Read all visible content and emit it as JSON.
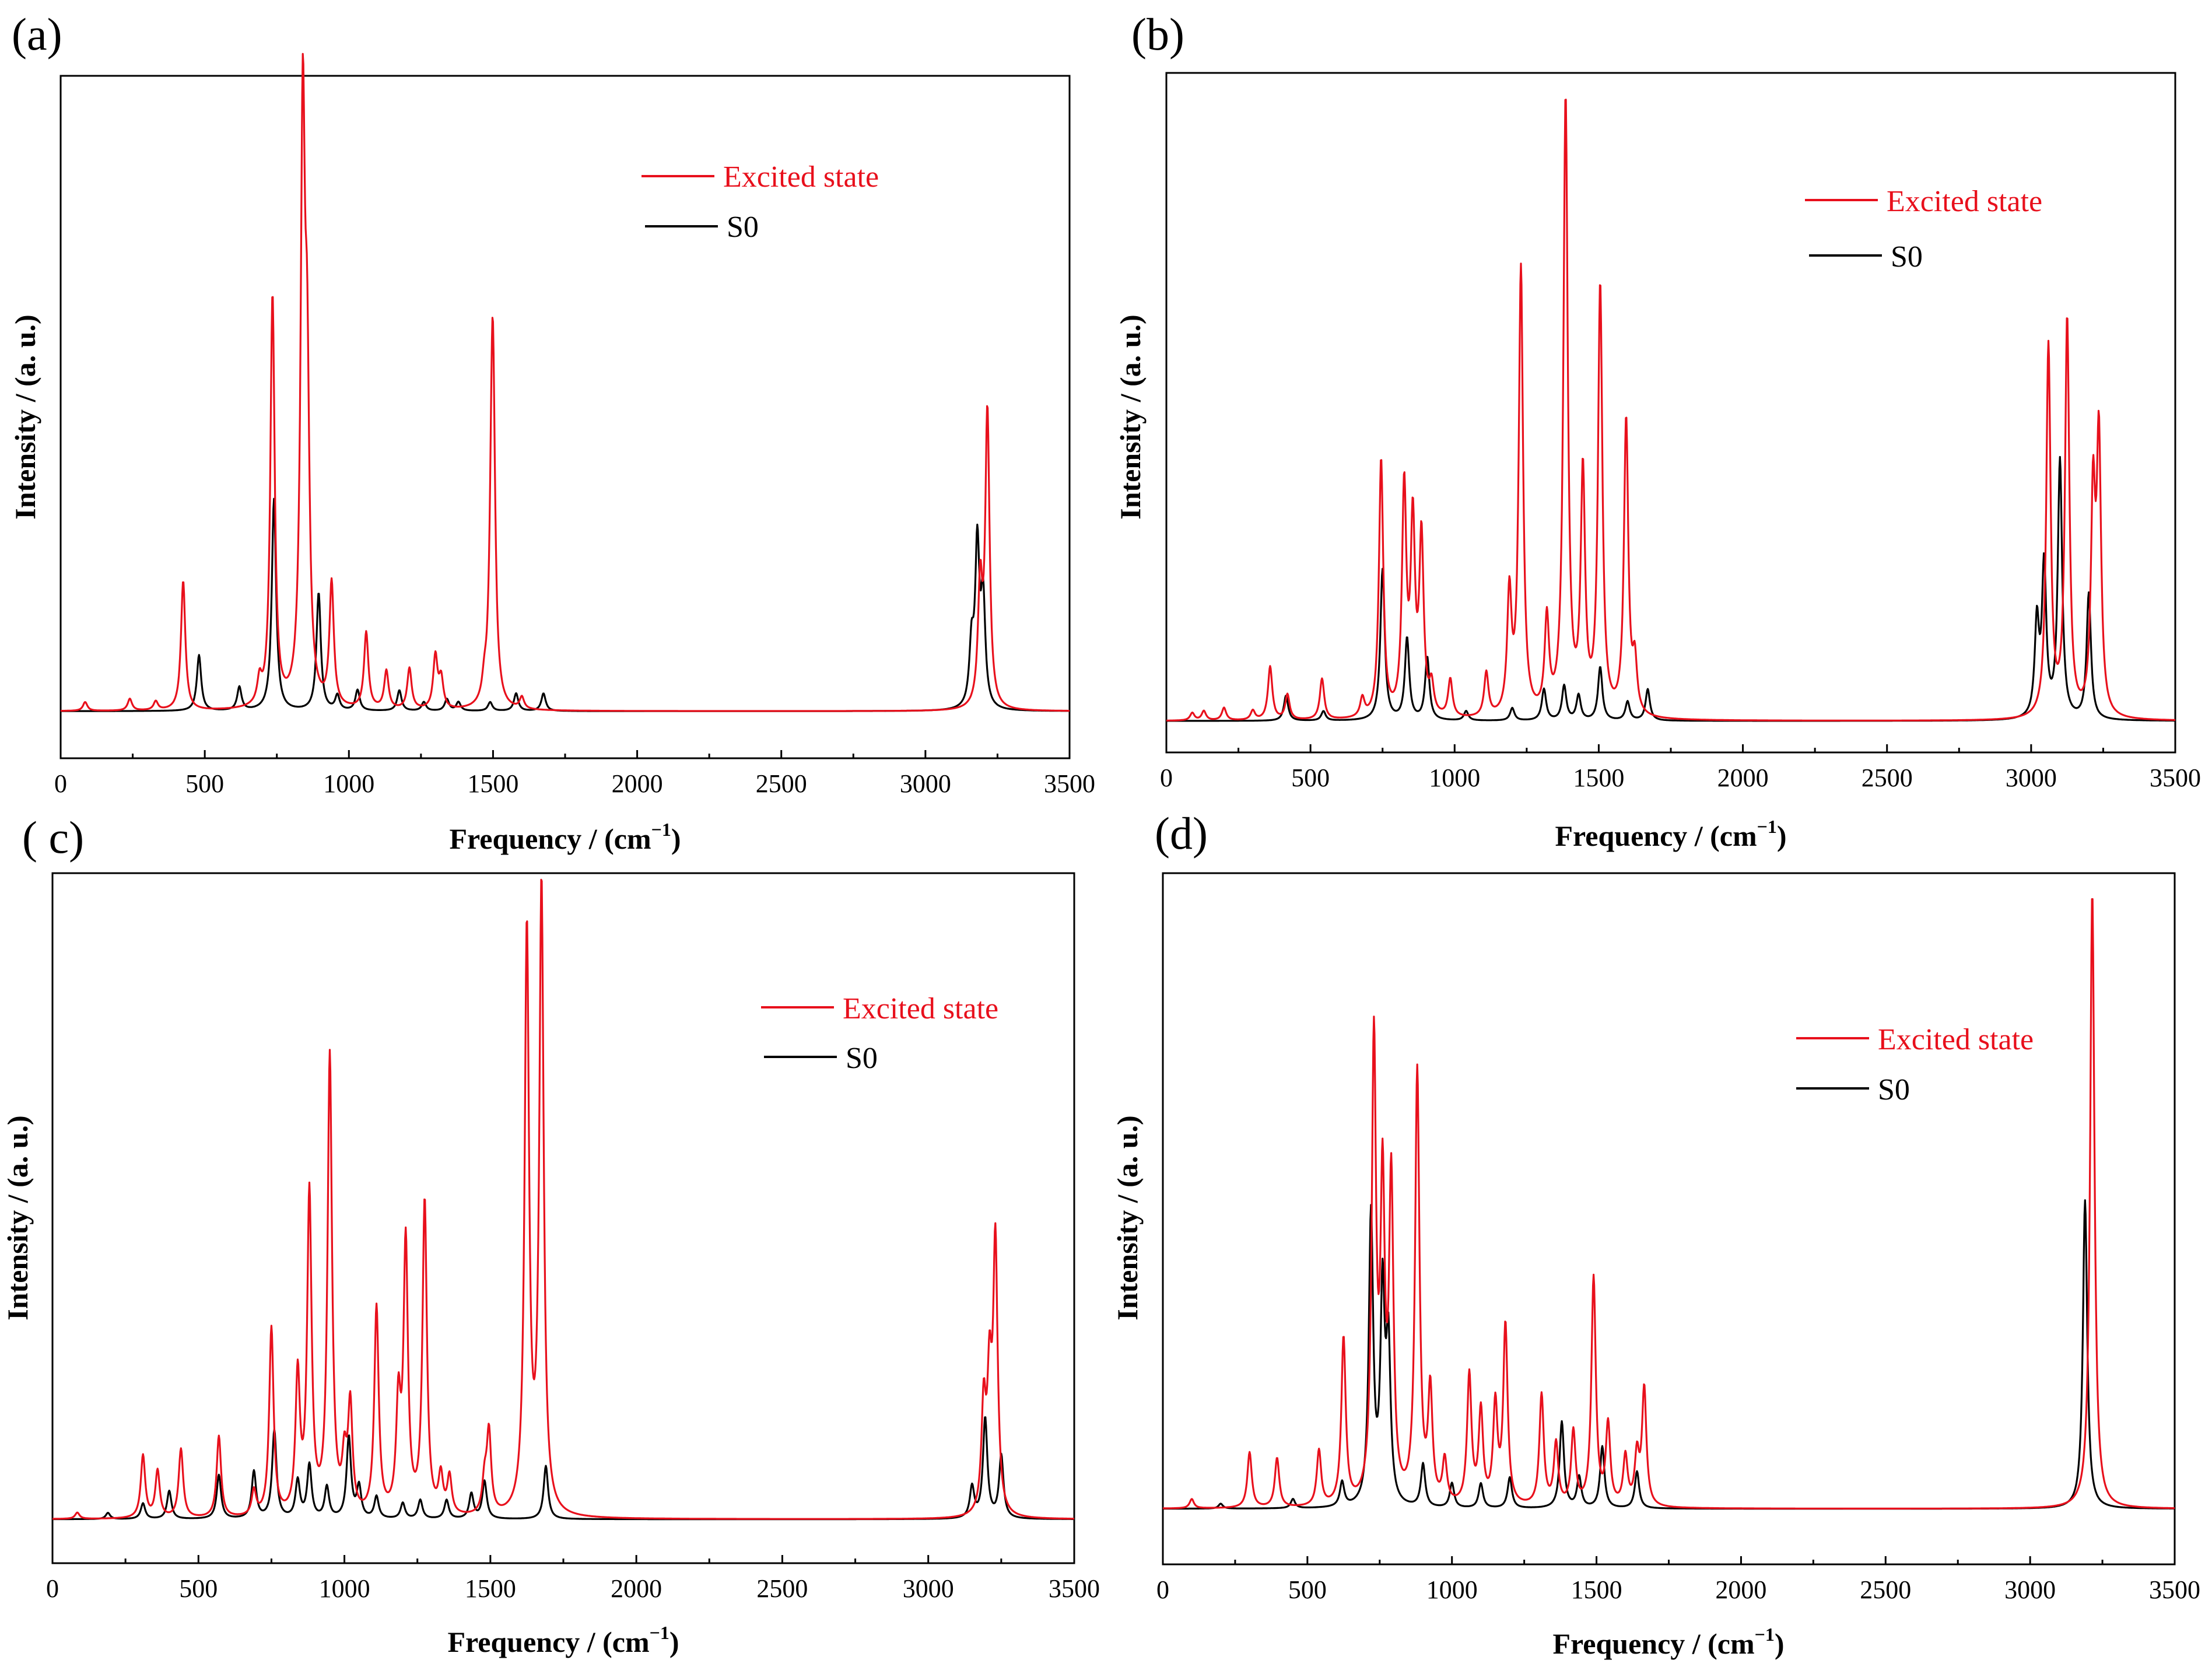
{
  "figure_title": "",
  "colors": {
    "excited": "#e8101c",
    "ground": "#000000"
  },
  "chart_data": [
    {
      "panel": "(a)",
      "type": "line",
      "xlabel": "Frequency / (cm−1)",
      "xlabel_main": "Frequency / (cm",
      "xlabel_sup": "−1",
      "xlabel_close": ")",
      "ylabel": "Intensity / (a. u.)",
      "xlim": [
        0,
        3500
      ],
      "ylim": [
        -0.08,
        1.08
      ],
      "xticks": [
        0,
        500,
        1000,
        1500,
        2000,
        2500,
        3000,
        3500
      ],
      "legend": {
        "position": "top-right",
        "entries": [
          "Excited state",
          "S0"
        ]
      },
      "series": [
        {
          "name": "Excited state",
          "color": "#e8101c",
          "peaks": [
            [
              85,
              0.015
            ],
            [
              240,
              0.02
            ],
            [
              330,
              0.015
            ],
            [
              425,
              0.22
            ],
            [
              690,
              0.04
            ],
            [
              735,
              0.7
            ],
            [
              840,
              0.98
            ],
            [
              855,
              0.49
            ],
            [
              940,
              0.21
            ],
            [
              1060,
              0.13
            ],
            [
              1130,
              0.065
            ],
            [
              1210,
              0.07
            ],
            [
              1300,
              0.09
            ],
            [
              1320,
              0.05
            ],
            [
              1470,
              0.03
            ],
            [
              1495,
              0.22
            ],
            [
              1500,
              0.49
            ],
            [
              1600,
              0.02
            ],
            [
              3190,
              0.2
            ],
            [
              3215,
              0.5
            ]
          ]
        },
        {
          "name": "S0",
          "color": "#000000",
          "peaks": [
            [
              480,
              0.095
            ],
            [
              620,
              0.04
            ],
            [
              740,
              0.36
            ],
            [
              895,
              0.2
            ],
            [
              960,
              0.025
            ],
            [
              1030,
              0.035
            ],
            [
              1175,
              0.035
            ],
            [
              1260,
              0.015
            ],
            [
              1340,
              0.02
            ],
            [
              1380,
              0.015
            ],
            [
              1490,
              0.015
            ],
            [
              1580,
              0.03
            ],
            [
              1675,
              0.03
            ],
            [
              3160,
              0.1
            ],
            [
              3180,
              0.27
            ],
            [
              3200,
              0.18
            ]
          ]
        }
      ]
    },
    {
      "panel": "(b)",
      "type": "line",
      "xlabel": "Frequency / (cm−1)",
      "xlabel_main": "Frequency / (cm",
      "xlabel_sup": "−1",
      "xlabel_close": ")",
      "ylabel": "Intensity / (a. u.)",
      "xlim": [
        0,
        3500
      ],
      "ylim": [
        -0.05,
        1.03
      ],
      "xticks": [
        0,
        500,
        1000,
        1500,
        2000,
        2500,
        3000,
        3500
      ],
      "legend": {
        "position": "top-right",
        "entries": [
          "Excited state",
          "S0"
        ]
      },
      "series": [
        {
          "name": "Excited state",
          "color": "#e8101c",
          "peaks": [
            [
              90,
              0.012
            ],
            [
              130,
              0.015
            ],
            [
              200,
              0.02
            ],
            [
              300,
              0.015
            ],
            [
              360,
              0.085
            ],
            [
              420,
              0.04
            ],
            [
              540,
              0.065
            ],
            [
              680,
              0.03
            ],
            [
              745,
              0.41
            ],
            [
              825,
              0.36
            ],
            [
              855,
              0.3
            ],
            [
              885,
              0.28
            ],
            [
              920,
              0.045
            ],
            [
              985,
              0.06
            ],
            [
              1110,
              0.07
            ],
            [
              1190,
              0.19
            ],
            [
              1230,
              0.71
            ],
            [
              1320,
              0.15
            ],
            [
              1385,
              0.98
            ],
            [
              1445,
              0.38
            ],
            [
              1505,
              0.68
            ],
            [
              1595,
              0.47
            ],
            [
              1625,
              0.08
            ],
            [
              3060,
              0.59
            ],
            [
              3125,
              0.63
            ],
            [
              3215,
              0.34
            ],
            [
              3235,
              0.43
            ]
          ]
        },
        {
          "name": "S0",
          "color": "#000000",
          "peaks": [
            [
              415,
              0.04
            ],
            [
              545,
              0.015
            ],
            [
              750,
              0.24
            ],
            [
              835,
              0.13
            ],
            [
              905,
              0.1
            ],
            [
              1040,
              0.015
            ],
            [
              1200,
              0.02
            ],
            [
              1310,
              0.05
            ],
            [
              1380,
              0.055
            ],
            [
              1430,
              0.04
            ],
            [
              1505,
              0.085
            ],
            [
              1600,
              0.03
            ],
            [
              1670,
              0.05
            ],
            [
              3020,
              0.15
            ],
            [
              3045,
              0.24
            ],
            [
              3100,
              0.41
            ],
            [
              3200,
              0.2
            ]
          ]
        }
      ]
    },
    {
      "panel": "( c)",
      "type": "line",
      "xlabel": "Frequency / (cm−1)",
      "xlabel_main": "Frequency / (cm",
      "xlabel_sup": "−1",
      "xlabel_close": ")",
      "ylabel": "Intensity / (a. u.)",
      "xlim": [
        0,
        3500
      ],
      "ylim": [
        -0.07,
        1.03
      ],
      "xticks": [
        0,
        500,
        1000,
        1500,
        2000,
        2500,
        3000,
        3500
      ],
      "legend": {
        "position": "top-right",
        "entries": [
          "Excited state",
          "S0"
        ]
      },
      "series": [
        {
          "name": "Excited state",
          "color": "#e8101c",
          "peaks": [
            [
              85,
              0.01
            ],
            [
              310,
              0.1
            ],
            [
              360,
              0.075
            ],
            [
              440,
              0.11
            ],
            [
              570,
              0.13
            ],
            [
              690,
              0.04
            ],
            [
              750,
              0.3
            ],
            [
              840,
              0.22
            ],
            [
              880,
              0.51
            ],
            [
              950,
              0.73
            ],
            [
              1000,
              0.08
            ],
            [
              1020,
              0.17
            ],
            [
              1110,
              0.33
            ],
            [
              1185,
              0.17
            ],
            [
              1210,
              0.43
            ],
            [
              1275,
              0.5
            ],
            [
              1330,
              0.06
            ],
            [
              1360,
              0.06
            ],
            [
              1480,
              0.05
            ],
            [
              1495,
              0.13
            ],
            [
              1625,
              0.93
            ],
            [
              1675,
              1.0
            ],
            [
              3190,
              0.17
            ],
            [
              3210,
              0.2
            ],
            [
              3230,
              0.43
            ]
          ]
        },
        {
          "name": "S0",
          "color": "#000000",
          "peaks": [
            [
              190,
              0.01
            ],
            [
              310,
              0.025
            ],
            [
              400,
              0.045
            ],
            [
              570,
              0.07
            ],
            [
              690,
              0.075
            ],
            [
              760,
              0.14
            ],
            [
              840,
              0.06
            ],
            [
              880,
              0.085
            ],
            [
              940,
              0.05
            ],
            [
              1015,
              0.13
            ],
            [
              1050,
              0.05
            ],
            [
              1110,
              0.035
            ],
            [
              1200,
              0.025
            ],
            [
              1260,
              0.03
            ],
            [
              1350,
              0.03
            ],
            [
              1435,
              0.04
            ],
            [
              1480,
              0.06
            ],
            [
              1690,
              0.085
            ],
            [
              3150,
              0.05
            ],
            [
              3195,
              0.16
            ],
            [
              3250,
              0.1
            ]
          ]
        }
      ]
    },
    {
      "panel": "(d)",
      "type": "line",
      "xlabel": "Frequency / (cm−1)",
      "xlabel_main": "Frequency / (cm",
      "xlabel_sup": "−1",
      "xlabel_close": ")",
      "ylabel": "Intensity / (a. u.)",
      "xlim": [
        0,
        3500
      ],
      "ylim": [
        -0.09,
        1.03
      ],
      "xticks": [
        0,
        500,
        1000,
        1500,
        2000,
        2500,
        3000,
        3500
      ],
      "legend": {
        "position": "top-right",
        "entries": [
          "Excited state",
          "S0"
        ]
      },
      "series": [
        {
          "name": "Excited state",
          "color": "#e8101c",
          "peaks": [
            [
              100,
              0.015
            ],
            [
              300,
              0.09
            ],
            [
              395,
              0.08
            ],
            [
              540,
              0.09
            ],
            [
              625,
              0.27
            ],
            [
              730,
              0.74
            ],
            [
              760,
              0.49
            ],
            [
              790,
              0.51
            ],
            [
              880,
              0.7
            ],
            [
              925,
              0.18
            ],
            [
              975,
              0.07
            ],
            [
              1060,
              0.21
            ],
            [
              1100,
              0.15
            ],
            [
              1150,
              0.16
            ],
            [
              1185,
              0.29
            ],
            [
              1310,
              0.18
            ],
            [
              1360,
              0.1
            ],
            [
              1420,
              0.12
            ],
            [
              1490,
              0.37
            ],
            [
              1540,
              0.13
            ],
            [
              1600,
              0.08
            ],
            [
              1640,
              0.08
            ],
            [
              1665,
              0.19
            ],
            [
              3215,
              1.0
            ]
          ]
        },
        {
          "name": "S0",
          "color": "#000000",
          "peaks": [
            [
              200,
              0.008
            ],
            [
              450,
              0.015
            ],
            [
              620,
              0.04
            ],
            [
              720,
              0.47
            ],
            [
              760,
              0.34
            ],
            [
              780,
              0.25
            ],
            [
              900,
              0.07
            ],
            [
              1000,
              0.04
            ],
            [
              1100,
              0.04
            ],
            [
              1200,
              0.05
            ],
            [
              1380,
              0.14
            ],
            [
              1440,
              0.05
            ],
            [
              1520,
              0.1
            ],
            [
              1640,
              0.06
            ],
            [
              3190,
              0.5
            ]
          ]
        }
      ]
    }
  ]
}
